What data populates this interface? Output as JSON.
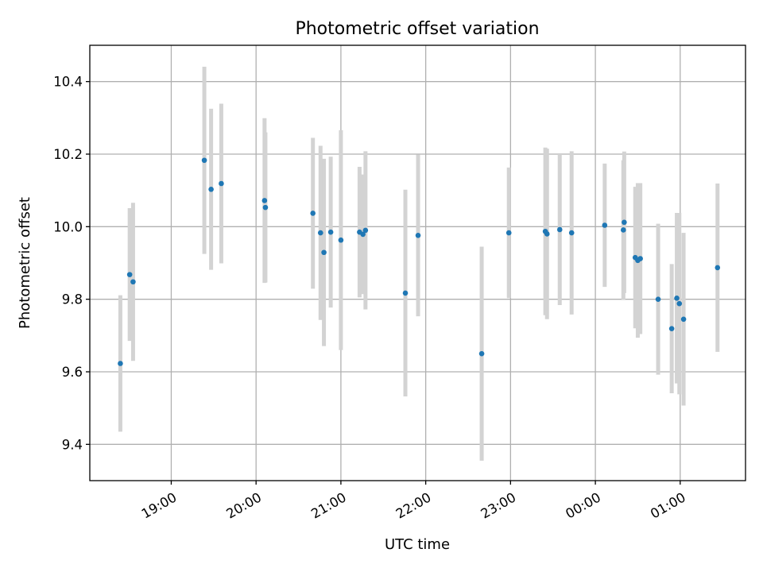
{
  "chart_data": {
    "type": "scatter",
    "title": "Photometric offset variation",
    "xlabel": "UTC time",
    "ylabel": "Photometric offset",
    "x_type": "time",
    "x_unit": "hours UTC; values past 24 are after midnight",
    "xlim": [
      18.04,
      25.77
    ],
    "ylim": [
      9.3,
      10.5
    ],
    "x_ticks": [
      {
        "value": 19,
        "label": "19:00"
      },
      {
        "value": 20,
        "label": "20:00"
      },
      {
        "value": 21,
        "label": "21:00"
      },
      {
        "value": 22,
        "label": "22:00"
      },
      {
        "value": 23,
        "label": "23:00"
      },
      {
        "value": 24,
        "label": "00:00"
      },
      {
        "value": 25,
        "label": "01:00"
      }
    ],
    "y_ticks": [
      {
        "value": 9.4,
        "label": "9.4"
      },
      {
        "value": 9.6,
        "label": "9.6"
      },
      {
        "value": 9.8,
        "label": "9.8"
      },
      {
        "value": 10.0,
        "label": "10.0"
      },
      {
        "value": 10.2,
        "label": "10.2"
      },
      {
        "value": 10.4,
        "label": "10.4"
      }
    ],
    "grid": true,
    "marker_color": "#1f77b4",
    "errorbar_color": "#d3d3d3",
    "points": [
      {
        "x": 18.4,
        "y": 9.623,
        "err": 0.188
      },
      {
        "x": 18.51,
        "y": 9.868,
        "err": 0.183
      },
      {
        "x": 18.55,
        "y": 9.848,
        "err": 0.218
      },
      {
        "x": 19.39,
        "y": 10.183,
        "err": 0.258
      },
      {
        "x": 19.47,
        "y": 10.103,
        "err": 0.222
      },
      {
        "x": 19.59,
        "y": 10.119,
        "err": 0.22
      },
      {
        "x": 20.1,
        "y": 10.072,
        "err": 0.227
      },
      {
        "x": 20.11,
        "y": 10.053,
        "err": 0.207
      },
      {
        "x": 20.67,
        "y": 10.037,
        "err": 0.208
      },
      {
        "x": 20.76,
        "y": 9.983,
        "err": 0.24
      },
      {
        "x": 20.8,
        "y": 9.929,
        "err": 0.258
      },
      {
        "x": 20.88,
        "y": 9.985,
        "err": 0.208
      },
      {
        "x": 21.0,
        "y": 9.963,
        "err": 0.303
      },
      {
        "x": 21.22,
        "y": 9.985,
        "err": 0.18
      },
      {
        "x": 21.26,
        "y": 9.979,
        "err": 0.165
      },
      {
        "x": 21.29,
        "y": 9.99,
        "err": 0.218
      },
      {
        "x": 21.76,
        "y": 9.817,
        "err": 0.285
      },
      {
        "x": 21.91,
        "y": 9.976,
        "err": 0.223
      },
      {
        "x": 22.66,
        "y": 9.65,
        "err": 0.295
      },
      {
        "x": 22.98,
        "y": 9.983,
        "err": 0.18
      },
      {
        "x": 23.41,
        "y": 9.987,
        "err": 0.231
      },
      {
        "x": 23.43,
        "y": 9.98,
        "err": 0.235
      },
      {
        "x": 23.58,
        "y": 9.992,
        "err": 0.208
      },
      {
        "x": 23.72,
        "y": 9.983,
        "err": 0.225
      },
      {
        "x": 24.11,
        "y": 10.004,
        "err": 0.17
      },
      {
        "x": 24.33,
        "y": 9.991,
        "err": 0.192
      },
      {
        "x": 24.34,
        "y": 10.012,
        "err": 0.195
      },
      {
        "x": 24.47,
        "y": 9.915,
        "err": 0.195
      },
      {
        "x": 24.5,
        "y": 9.907,
        "err": 0.213
      },
      {
        "x": 24.53,
        "y": 9.912,
        "err": 0.208
      },
      {
        "x": 24.74,
        "y": 9.8,
        "err": 0.208
      },
      {
        "x": 24.9,
        "y": 9.719,
        "err": 0.178
      },
      {
        "x": 24.96,
        "y": 9.803,
        "err": 0.235
      },
      {
        "x": 24.99,
        "y": 9.788,
        "err": 0.25
      },
      {
        "x": 25.04,
        "y": 9.745,
        "err": 0.238
      },
      {
        "x": 25.44,
        "y": 9.887,
        "err": 0.232
      }
    ]
  }
}
